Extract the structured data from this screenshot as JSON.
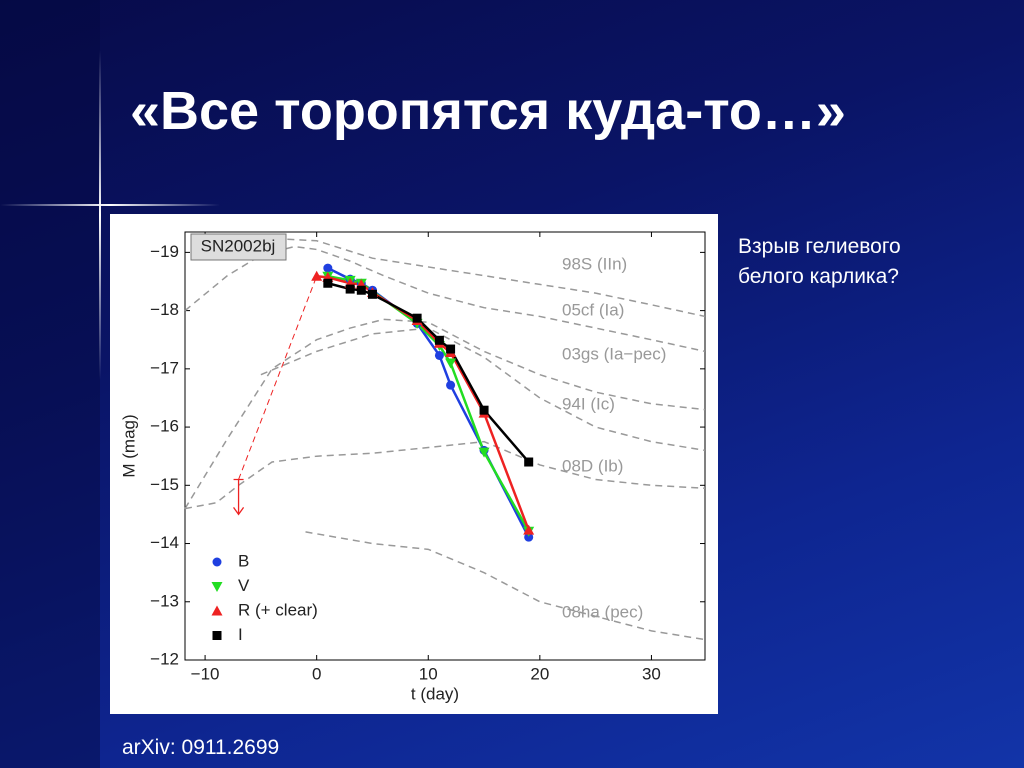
{
  "title": "«Все торопятся куда-то…»",
  "side_text": [
    "Взрыв гелиевого",
    "белого карлика?"
  ],
  "source": "arXiv: 0911.2699",
  "chart_data": {
    "type": "line",
    "annotation": "SN2002bj",
    "xlabel": "t (day)",
    "ylabel": "M (mag)",
    "xlim": [
      -11.8,
      34.8
    ],
    "ylim": [
      -12,
      -19.35
    ],
    "xticks": [
      {
        "value": -10,
        "label": "−10"
      },
      0,
      10,
      20,
      30
    ],
    "yticks": [
      {
        "value": -19,
        "label": "−19"
      },
      {
        "value": -18,
        "label": "−18"
      },
      {
        "value": -17,
        "label": "−17"
      },
      {
        "value": -16,
        "label": "−16"
      },
      {
        "value": -15,
        "label": "−15"
      },
      {
        "value": -14,
        "label": "−14"
      },
      {
        "value": -13,
        "label": "−13"
      },
      {
        "value": -12,
        "label": "−12"
      }
    ],
    "series": [
      {
        "name": "B",
        "color": "#1f3fe0",
        "marker": "circle",
        "x": [
          1,
          3,
          4,
          5,
          9,
          11,
          12,
          15,
          19
        ],
        "values": [
          -18.73,
          -18.54,
          -18.47,
          -18.35,
          -17.78,
          -17.23,
          -16.72,
          -15.6,
          -14.11
        ]
      },
      {
        "name": "V",
        "color": "#22dd22",
        "marker": "triangle-down",
        "x": [
          1,
          3,
          4,
          9,
          11,
          12,
          15,
          19
        ],
        "values": [
          -18.59,
          -18.52,
          -18.47,
          -17.78,
          -17.4,
          -17.1,
          -15.57,
          -14.21
        ]
      },
      {
        "name": "R (+ clear)",
        "color": "#ee2222",
        "marker": "triangle",
        "x": [
          0,
          1,
          3,
          4,
          5,
          9,
          11,
          12,
          15,
          19
        ],
        "values": [
          -18.59,
          -18.57,
          -18.47,
          -18.45,
          -18.31,
          -17.83,
          -17.44,
          -17.28,
          -16.24,
          -14.23
        ]
      },
      {
        "name": "I",
        "color": "#000000",
        "marker": "square",
        "x": [
          1,
          3,
          4,
          5,
          9,
          11,
          12,
          15,
          19
        ],
        "values": [
          -18.47,
          -18.37,
          -18.35,
          -18.28,
          -17.87,
          -17.49,
          -17.34,
          -16.29,
          -15.4
        ]
      }
    ],
    "reference_curves": [
      {
        "name": "98S (IIn)",
        "color": "#999999",
        "x": [
          -9,
          -5,
          0,
          5,
          10,
          15,
          20,
          25,
          30,
          34.8
        ],
        "values": [
          -19.1,
          -19.25,
          -19.2,
          -18.9,
          -18.75,
          -18.6,
          -18.45,
          -18.3,
          -18.1,
          -17.9
        ]
      },
      {
        "name": "05cf (Ia)",
        "color": "#999999",
        "x": [
          -11.8,
          -8,
          -5,
          -2,
          0,
          3,
          6,
          10,
          15,
          20,
          25,
          30,
          34.8
        ],
        "values": [
          -18.0,
          -18.6,
          -18.95,
          -19.1,
          -19.05,
          -18.85,
          -18.6,
          -18.3,
          -18.05,
          -17.9,
          -17.7,
          -17.5,
          -17.3
        ]
      },
      {
        "name": "03gs (Ia−pec)",
        "color": "#999999",
        "x": [
          -11.8,
          -8,
          -4,
          0,
          3,
          6,
          10,
          15,
          20,
          25,
          30,
          34.8
        ],
        "values": [
          -14.6,
          -15.8,
          -17.0,
          -17.5,
          -17.7,
          -17.85,
          -17.8,
          -17.3,
          -16.9,
          -16.6,
          -16.4,
          -16.3
        ]
      },
      {
        "name": "94I (Ic)",
        "color": "#999999",
        "x": [
          -5,
          0,
          5,
          10,
          15,
          20,
          25,
          30,
          34.8
        ],
        "values": [
          -16.9,
          -17.3,
          -17.6,
          -17.7,
          -17.2,
          -16.5,
          -16.0,
          -15.75,
          -15.6
        ]
      },
      {
        "name": "08D (Ib)",
        "color": "#999999",
        "x": [
          -11.8,
          -9,
          -7,
          -4,
          0,
          5,
          10,
          15,
          20,
          25,
          30,
          34.8
        ],
        "values": [
          -14.6,
          -14.7,
          -15.0,
          -15.4,
          -15.5,
          -15.55,
          -15.65,
          -15.75,
          -15.35,
          -15.1,
          -15.0,
          -14.95
        ]
      },
      {
        "name": "08ha (pec)",
        "color": "#999999",
        "x": [
          -1,
          5,
          10,
          15,
          20,
          25,
          30,
          34.8
        ],
        "values": [
          -14.2,
          -14.0,
          -13.9,
          -13.5,
          -13.0,
          -12.75,
          -12.5,
          -12.35
        ]
      }
    ]
  }
}
